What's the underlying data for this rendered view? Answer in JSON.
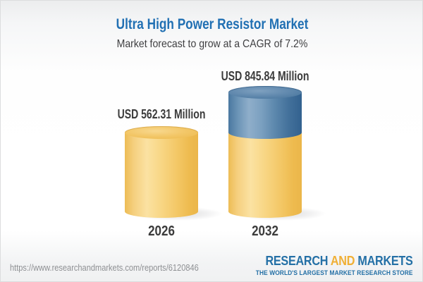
{
  "header": {
    "title": "Ultra High Power Resistor Market",
    "subtitle": "Market forecast to grow at a CAGR of 7.2%"
  },
  "chart_data": {
    "type": "bar",
    "variant": "3d-cylinder",
    "title": "Ultra High Power Resistor Market",
    "subtitle": "Market forecast to grow at a CAGR of 7.2%",
    "cagr_percent": 7.2,
    "unit": "USD Million",
    "categories": [
      "2026",
      "2032"
    ],
    "values": [
      562.31,
      845.84
    ],
    "value_labels": [
      "USD 562.31 Million",
      "USD 845.84 Million"
    ],
    "legend_position": "none",
    "grid": false,
    "colors": {
      "base_segment": "#f3c768",
      "growth_segment": "#5e89ae",
      "label_text": "#3b3b3b",
      "title_text": "#2170b3"
    }
  },
  "footer": {
    "url": "https://www.researchandmarkets.com/reports/6120846",
    "logo": {
      "research": "RESEARCH",
      "and": "AND",
      "markets": "MARKETS",
      "tagline": "THE WORLD'S LARGEST MARKET RESEARCH STORE"
    }
  }
}
